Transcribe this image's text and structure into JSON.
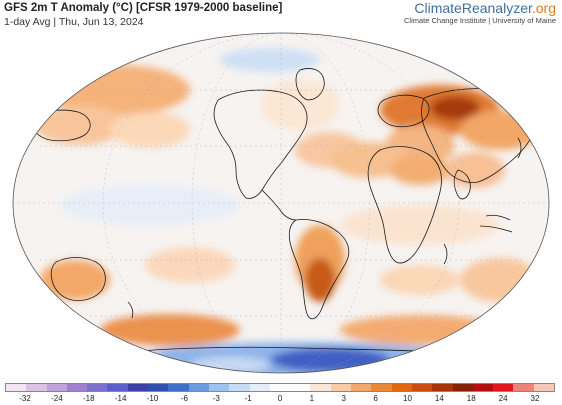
{
  "header": {
    "title": "GFS 2m T Anomaly (°C) [CFSR 1979-2000 baseline]",
    "subtitle": "1-day Avg | Thu, Jun 13, 2024"
  },
  "brand": {
    "name_part1": "ClimateReanalyzer",
    "name_part2": ".org",
    "tagline": "Climate Change Institute | University of Maine"
  },
  "colorbar": {
    "labels": [
      "-32",
      "-24",
      "-18",
      "-14",
      "-10",
      "-6",
      "-3",
      "-1",
      "0",
      "1",
      "3",
      "6",
      "10",
      "14",
      "18",
      "24",
      "32"
    ],
    "colors": [
      "#f3e6f3",
      "#dcc3e6",
      "#c3a2dc",
      "#a57fcf",
      "#7d6fcf",
      "#5a5fcf",
      "#3b3fa8",
      "#2c4fb0",
      "#3d70cc",
      "#6a9be0",
      "#9cc3ee",
      "#c8ddf5",
      "#e4eefa",
      "#ffffff",
      "#ffffff",
      "#fbe7d6",
      "#f8cca8",
      "#f3a76b",
      "#ec8836",
      "#e06a12",
      "#c84e0c",
      "#a83306",
      "#8a1f04",
      "#b01212",
      "#e01a1a",
      "#f0827a",
      "#f8c7b8"
    ]
  },
  "map": {
    "projection": "Robinson-like world map",
    "legend_scale_unit": "°C",
    "colors": {
      "ocean_neutral": "#f7f4f2",
      "warm_light": "#fbe0c8",
      "warm_mid": "#f2a460",
      "warm_strong": "#d5661a",
      "warm_very_strong": "#a43b0a",
      "cool_light": "#d8e6f7",
      "cool_mid": "#8fb4e8",
      "cool_strong": "#3f5fc4",
      "land_outline": "#1a1a1a"
    }
  }
}
